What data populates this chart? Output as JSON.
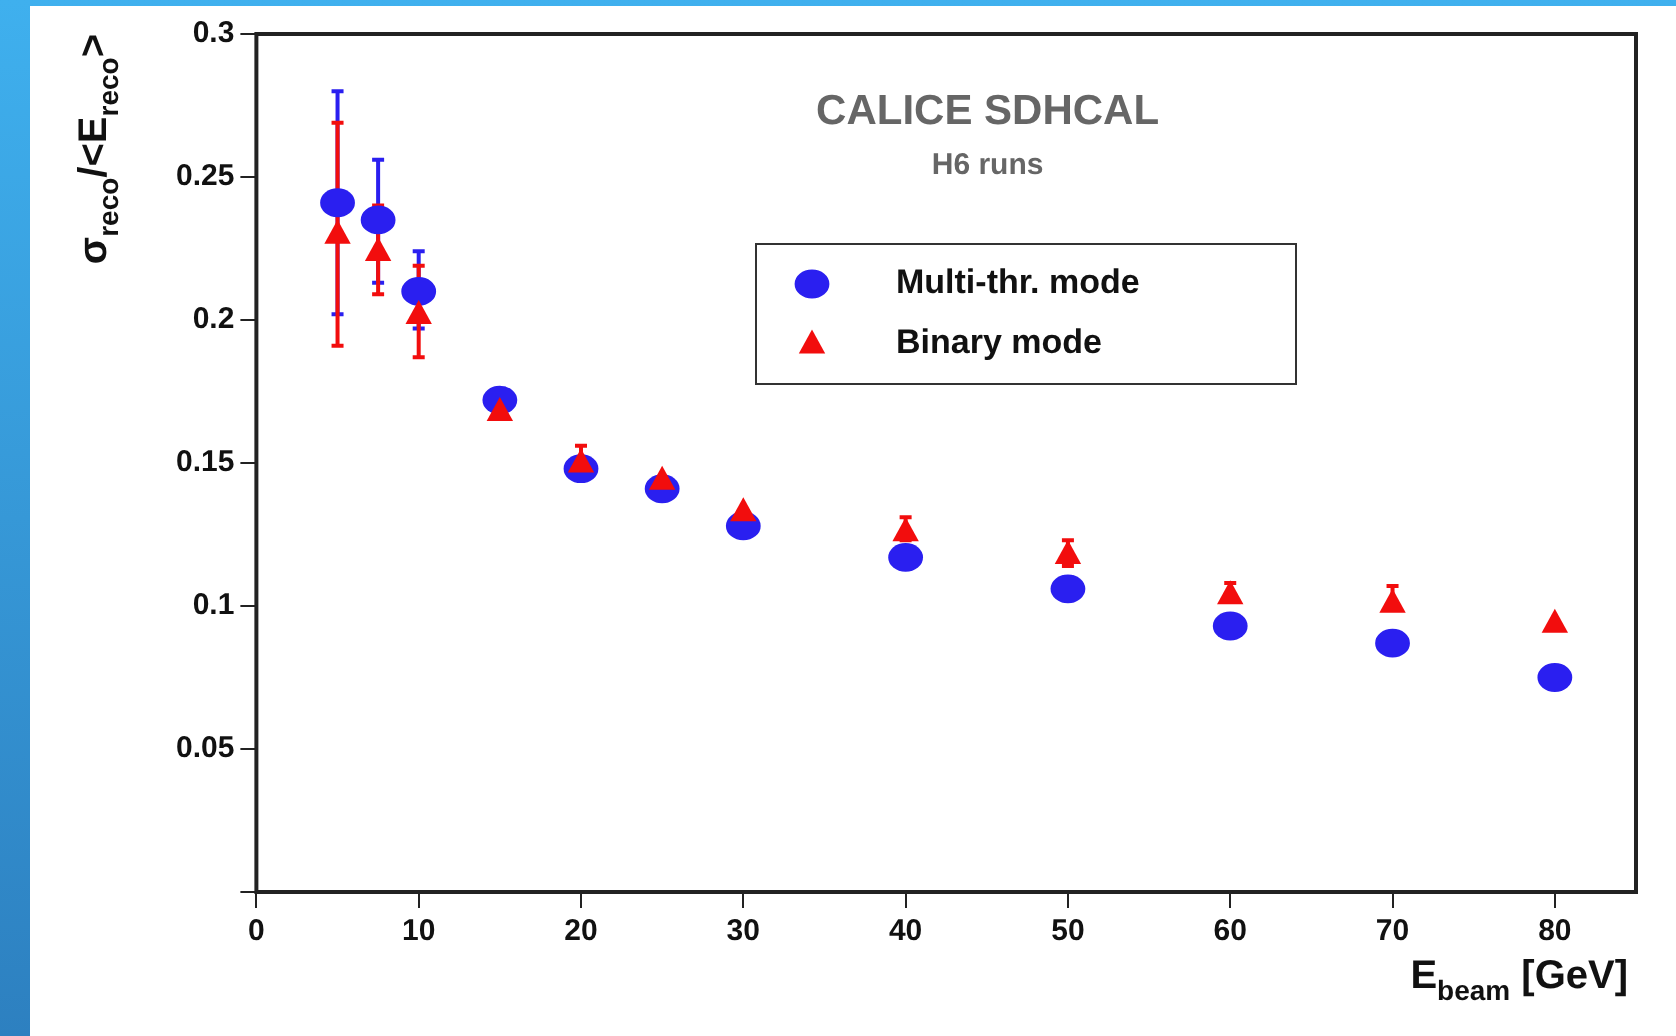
{
  "chart_data": {
    "type": "scatter",
    "title": "CALICE SDHCAL",
    "subtitle": "H6 runs",
    "xlabel": "E$_{beam}$ [GeV]",
    "ylabel": "σ$_{reco}$/<E$_{reco}$>",
    "xlim": [
      0,
      85
    ],
    "xticks": [
      0,
      10,
      20,
      30,
      40,
      50,
      60,
      70,
      80
    ],
    "ylim": [
      0,
      0.3
    ],
    "yticks": [
      {
        "value": 0,
        "label": null
      },
      0.05,
      0.1,
      0.15,
      0.2,
      0.25,
      0.3
    ],
    "grid": false,
    "legend": "top right",
    "series": [
      {
        "name": "Multi-thr. mode",
        "color": "#2a1ff0",
        "marker": "circle",
        "x": [
          5,
          7.5,
          10,
          15,
          20,
          25,
          30,
          40,
          50,
          60,
          70,
          80
        ],
        "values": [
          0.241,
          0.235,
          0.21,
          0.172,
          0.148,
          0.141,
          0.128,
          0.117,
          0.106,
          0.093,
          0.087,
          0.075
        ],
        "errors": [
          [
            0.202,
            0.28
          ],
          [
            0.213,
            0.256
          ],
          [
            0.197,
            0.224
          ],
          [
            0.17,
            0.176
          ],
          null,
          [
            0.137,
            0.144
          ],
          null,
          [
            0.113,
            0.121
          ],
          [
            0.102,
            0.11
          ],
          null,
          null,
          null
        ]
      },
      {
        "name": "Binary mode",
        "color": "#f20d0d",
        "marker": "triangle",
        "x": [
          5,
          7.5,
          10,
          15,
          20,
          25,
          30,
          40,
          50,
          60,
          70,
          80
        ],
        "values": [
          0.23,
          0.224,
          0.202,
          0.168,
          0.15,
          0.144,
          0.133,
          0.126,
          0.118,
          0.104,
          0.101,
          0.094
        ],
        "errors": [
          [
            0.191,
            0.269
          ],
          [
            0.209,
            0.24
          ],
          [
            0.187,
            0.219
          ],
          [
            0.166,
            0.17
          ],
          [
            0.147,
            0.156
          ],
          null,
          null,
          [
            0.123,
            0.131
          ],
          [
            0.114,
            0.123
          ],
          [
            0.102,
            0.108
          ],
          [
            0.099,
            0.107
          ],
          null
        ]
      }
    ]
  }
}
